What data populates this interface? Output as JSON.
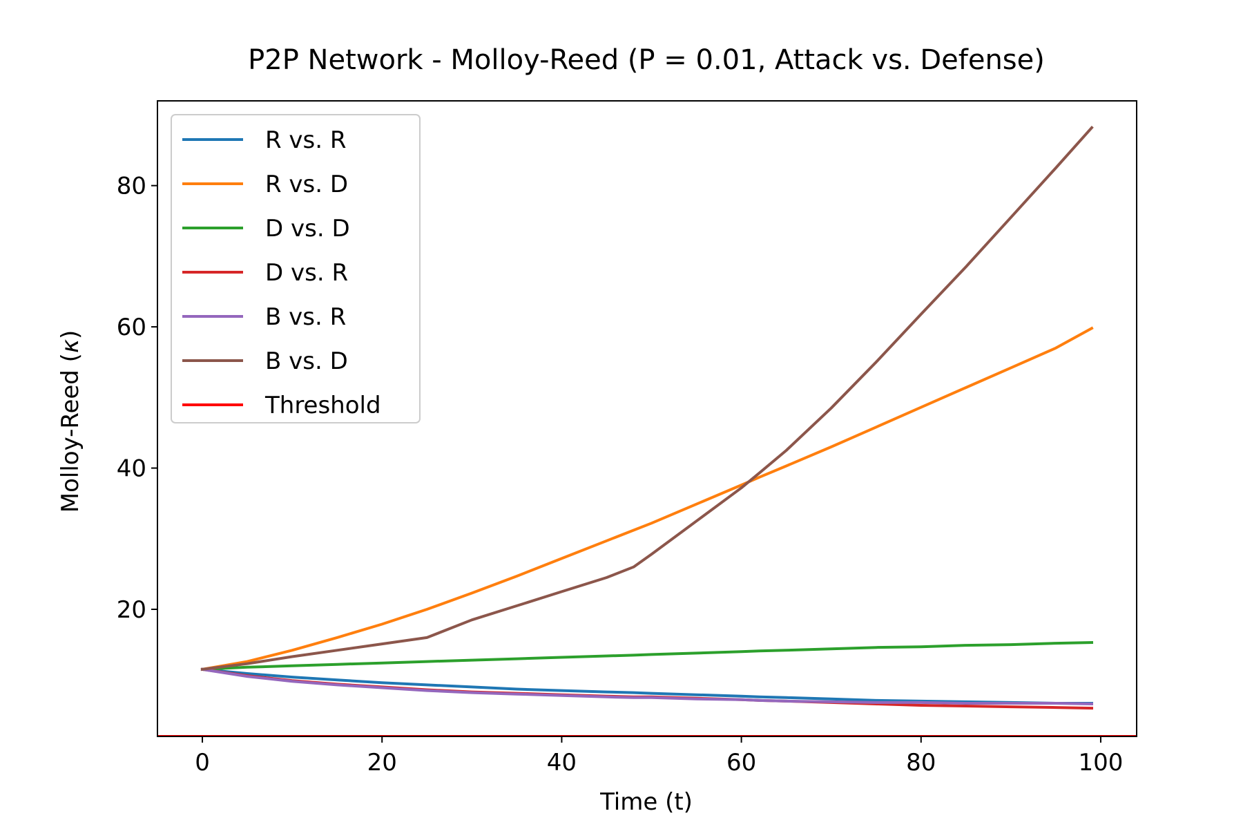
{
  "chart_data": {
    "type": "line",
    "title": "P2P Network - Molloy-Reed (P = 0.01, Attack vs. Defense)",
    "xlabel": "Time (t)",
    "ylabel_prefix": "Molloy-Reed (",
    "ylabel_symbol": "κ",
    "ylabel_suffix": ")",
    "xlim": [
      -5,
      104
    ],
    "ylim": [
      2,
      92
    ],
    "xticks": [
      0,
      20,
      40,
      60,
      80,
      100
    ],
    "yticks": [
      20,
      40,
      60,
      80
    ],
    "grid": false,
    "legend_position": "top-left",
    "x": [
      0,
      5,
      10,
      15,
      20,
      25,
      30,
      35,
      40,
      45,
      48,
      50,
      55,
      60,
      62,
      65,
      70,
      75,
      80,
      85,
      90,
      95,
      99
    ],
    "series": [
      {
        "name": "R vs. R",
        "color": "#1f77b4",
        "values": [
          11.5,
          10.9,
          10.4,
          10.0,
          9.6,
          9.3,
          9.0,
          8.7,
          8.5,
          8.3,
          8.2,
          8.1,
          7.9,
          7.7,
          7.6,
          7.5,
          7.3,
          7.1,
          7.0,
          6.9,
          6.8,
          6.7,
          6.7
        ]
      },
      {
        "name": "R vs. D",
        "color": "#ff7f0e",
        "values": [
          11.5,
          12.6,
          14.2,
          16.0,
          17.9,
          20.0,
          22.3,
          24.7,
          27.2,
          29.7,
          31.2,
          32.2,
          34.9,
          37.6,
          38.7,
          40.3,
          43.0,
          45.8,
          48.6,
          51.4,
          54.2,
          57.0,
          59.8
        ]
      },
      {
        "name": "D vs. D",
        "color": "#2ca02c",
        "values": [
          11.5,
          11.8,
          12.0,
          12.2,
          12.4,
          12.6,
          12.8,
          13.0,
          13.2,
          13.4,
          13.5,
          13.6,
          13.8,
          14.0,
          14.1,
          14.2,
          14.4,
          14.6,
          14.7,
          14.9,
          15.0,
          15.2,
          15.3
        ]
      },
      {
        "name": "D vs. R",
        "color": "#d62728",
        "values": [
          11.5,
          10.6,
          9.9,
          9.4,
          9.0,
          8.6,
          8.3,
          8.1,
          7.9,
          7.7,
          7.6,
          7.6,
          7.4,
          7.2,
          7.1,
          7.0,
          6.8,
          6.6,
          6.4,
          6.3,
          6.2,
          6.1,
          6.0
        ]
      },
      {
        "name": "B vs. R",
        "color": "#9467bd",
        "values": [
          11.5,
          10.5,
          9.8,
          9.3,
          8.9,
          8.5,
          8.2,
          8.0,
          7.8,
          7.6,
          7.5,
          7.5,
          7.3,
          7.2,
          7.1,
          7.0,
          6.9,
          6.8,
          6.8,
          6.7,
          6.7,
          6.7,
          6.6
        ]
      },
      {
        "name": "B vs. D",
        "color": "#8c564b",
        "values": [
          11.5,
          12.3,
          13.3,
          14.2,
          15.1,
          16.0,
          18.5,
          20.5,
          22.5,
          24.5,
          26.0,
          27.8,
          32.5,
          37.2,
          39.3,
          42.5,
          48.5,
          55.0,
          61.8,
          68.5,
          75.5,
          82.5,
          88.2
        ]
      },
      {
        "name": "Threshold",
        "color": "#ff0000",
        "constant": 2.0
      }
    ]
  }
}
